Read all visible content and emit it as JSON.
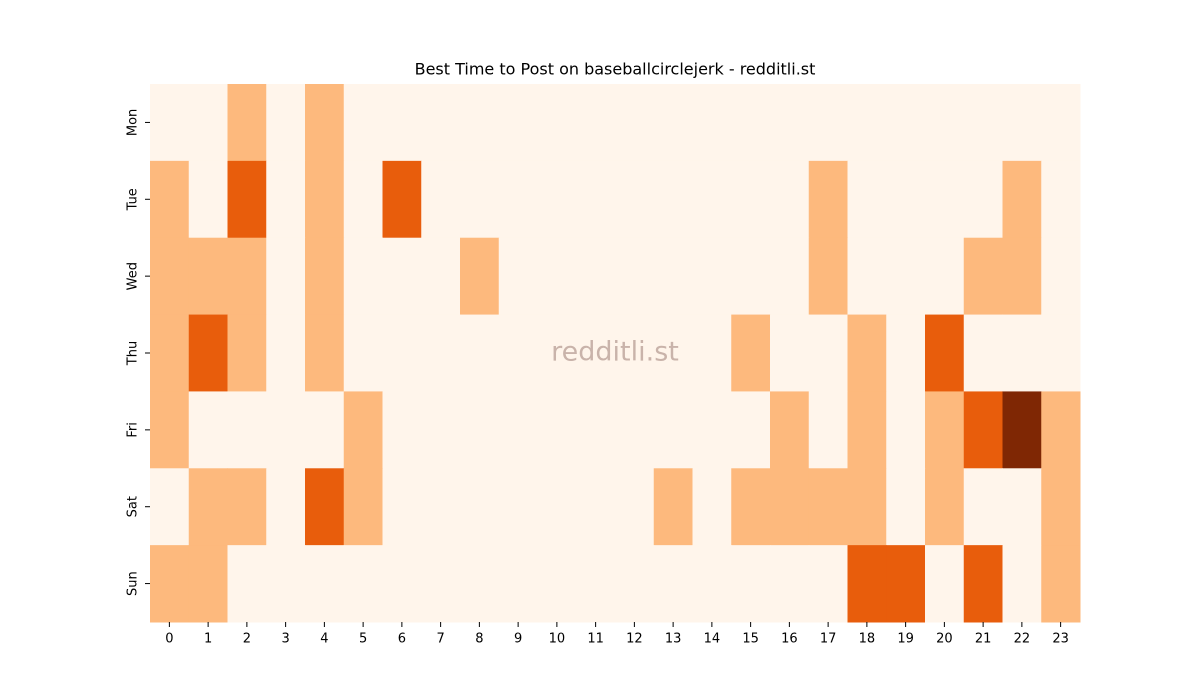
{
  "chart_data": {
    "type": "heatmap",
    "title": "Best Time to Post on baseballcirclejerk - redditli.st",
    "watermark": "redditli.st",
    "categories": [
      "0",
      "1",
      "2",
      "3",
      "4",
      "5",
      "6",
      "7",
      "8",
      "9",
      "10",
      "11",
      "12",
      "13",
      "14",
      "15",
      "16",
      "17",
      "18",
      "19",
      "20",
      "21",
      "22",
      "23"
    ],
    "rows": [
      "Mon",
      "Tue",
      "Wed",
      "Thu",
      "Fri",
      "Sat",
      "Sun"
    ],
    "values": [
      [
        0,
        0,
        1,
        0,
        1,
        0,
        0,
        0,
        0,
        0,
        0,
        0,
        0,
        0,
        0,
        0,
        0,
        0,
        0,
        0,
        0,
        0,
        0,
        0
      ],
      [
        1,
        0,
        2,
        0,
        1,
        0,
        2,
        0,
        0,
        0,
        0,
        0,
        0,
        0,
        0,
        0,
        0,
        1,
        0,
        0,
        0,
        0,
        1,
        0
      ],
      [
        1,
        1,
        1,
        0,
        1,
        0,
        0,
        0,
        1,
        0,
        0,
        0,
        0,
        0,
        0,
        0,
        0,
        1,
        0,
        0,
        0,
        1,
        1,
        0
      ],
      [
        1,
        2,
        1,
        0,
        1,
        0,
        0,
        0,
        0,
        0,
        0,
        0,
        0,
        0,
        0,
        1,
        0,
        0,
        1,
        0,
        2,
        0,
        0,
        0
      ],
      [
        1,
        0,
        0,
        0,
        0,
        1,
        0,
        0,
        0,
        0,
        0,
        0,
        0,
        0,
        0,
        0,
        1,
        0,
        1,
        0,
        1,
        2,
        3,
        1
      ],
      [
        0,
        1,
        1,
        0,
        2,
        1,
        0,
        0,
        0,
        0,
        0,
        0,
        0,
        1,
        0,
        1,
        1,
        1,
        1,
        0,
        1,
        0,
        0,
        1
      ],
      [
        1,
        1,
        0,
        0,
        0,
        0,
        0,
        0,
        0,
        0,
        0,
        0,
        0,
        0,
        0,
        0,
        0,
        0,
        2,
        2,
        0,
        2,
        0,
        1
      ]
    ],
    "colors": [
      "#fff5eb",
      "#fdb97d",
      "#e85d0c",
      "#7f2704"
    ],
    "zlim": [
      0,
      3
    ]
  }
}
